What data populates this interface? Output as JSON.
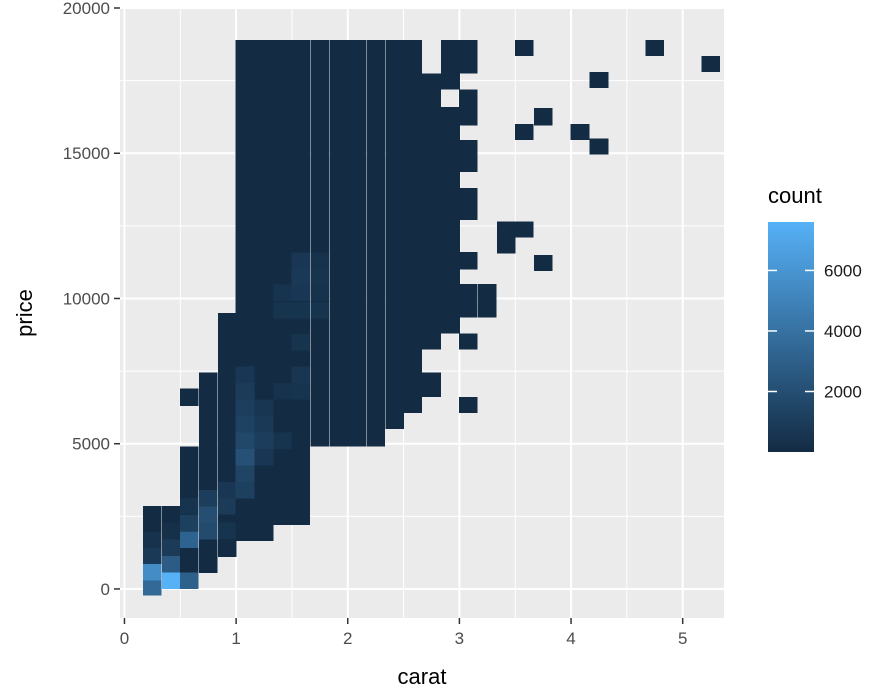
{
  "chart_data": {
    "type": "heatmap",
    "title": "",
    "xlabel": "carat",
    "ylabel": "price",
    "xlim": [
      -0.04,
      5.37
    ],
    "ylim": [
      -1000,
      20000
    ],
    "x_ticks": [
      "0",
      "1",
      "2",
      "3",
      "4",
      "5"
    ],
    "y_ticks": [
      "0",
      "5000",
      "10000",
      "15000",
      "20000"
    ],
    "bin_width": 0.1665,
    "bin_height": 567,
    "legend": {
      "title": "count",
      "min": 1,
      "max": 7600,
      "labels": [
        "2000",
        "4000",
        "6000"
      ],
      "values": [
        2000,
        4000,
        6000
      ],
      "low_color": "#132B43",
      "high_color": "#56B1F7",
      "position": "right"
    },
    "panel_background": "#EBEBEB",
    "grid_color": "#FFFFFF",
    "columns": [
      {
        "x": 0.25,
        "ranges": [
          [
            0,
            2850
          ]
        ],
        "counts": [
          [
            50,
            3500
          ],
          [
            567,
            5500
          ],
          [
            1134,
            800
          ],
          [
            1701,
            400
          ]
        ]
      },
      {
        "x": 0.42,
        "ranges": [
          [
            0,
            2850
          ]
        ],
        "counts": [
          [
            283,
            7600
          ],
          [
            850,
            2800
          ],
          [
            1417,
            900
          ],
          [
            1984,
            300
          ]
        ]
      },
      {
        "x": 0.58,
        "ranges": [
          [
            0,
            4900
          ],
          [
            6300,
            6900
          ]
        ],
        "counts": [
          [
            283,
            3000
          ],
          [
            1700,
            3200
          ],
          [
            2270,
            1200
          ],
          [
            2840,
            500
          ]
        ]
      },
      {
        "x": 0.75,
        "ranges": [
          [
            550,
            7450
          ]
        ],
        "counts": [
          [
            1984,
            1800
          ],
          [
            2551,
            2000
          ],
          [
            3118,
            1000
          ]
        ]
      },
      {
        "x": 0.92,
        "ranges": [
          [
            1100,
            9500
          ]
        ],
        "counts": [
          [
            2000,
            500
          ],
          [
            2840,
            900
          ],
          [
            3400,
            700
          ]
        ]
      },
      {
        "x": 1.08,
        "ranges": [
          [
            1650,
            18900
          ]
        ],
        "counts": [
          [
            3400,
            1200
          ],
          [
            3970,
            1400
          ],
          [
            4530,
            2100
          ],
          [
            5100,
            1600
          ],
          [
            5670,
            1300
          ],
          [
            6240,
            1100
          ],
          [
            6800,
            900
          ],
          [
            7370,
            700
          ]
        ]
      },
      {
        "x": 1.25,
        "ranges": [
          [
            1650,
            18900
          ]
        ],
        "counts": [
          [
            4530,
            700
          ],
          [
            5100,
            1000
          ],
          [
            5670,
            800
          ],
          [
            6240,
            600
          ]
        ]
      },
      {
        "x": 1.42,
        "ranges": [
          [
            2200,
            18900
          ]
        ],
        "counts": [
          [
            5100,
            500
          ],
          [
            6800,
            400
          ],
          [
            9600,
            500
          ],
          [
            10200,
            500
          ]
        ]
      },
      {
        "x": 1.58,
        "ranges": [
          [
            2200,
            18900
          ]
        ],
        "counts": [
          [
            6800,
            500
          ],
          [
            7370,
            600
          ],
          [
            8500,
            500
          ],
          [
            9600,
            500
          ],
          [
            10200,
            700
          ],
          [
            10760,
            800
          ],
          [
            11300,
            700
          ]
        ]
      },
      {
        "x": 1.75,
        "ranges": [
          [
            4900,
            18900
          ]
        ],
        "counts": [
          [
            9600,
            500
          ],
          [
            10200,
            400
          ],
          [
            10760,
            500
          ],
          [
            11300,
            400
          ]
        ]
      },
      {
        "x": 1.92,
        "ranges": [
          [
            4900,
            18900
          ]
        ]
      },
      {
        "x": 2.08,
        "ranges": [
          [
            4900,
            18900
          ]
        ]
      },
      {
        "x": 2.25,
        "ranges": [
          [
            4900,
            18900
          ]
        ]
      },
      {
        "x": 2.42,
        "ranges": [
          [
            5500,
            18900
          ]
        ]
      },
      {
        "x": 2.58,
        "ranges": [
          [
            6050,
            18900
          ]
        ]
      },
      {
        "x": 2.75,
        "ranges": [
          [
            6600,
            7450
          ],
          [
            8250,
            17750
          ]
        ]
      },
      {
        "x": 2.92,
        "ranges": [
          [
            8800,
            16600
          ],
          [
            17200,
            18900
          ]
        ]
      },
      {
        "x": 3.08,
        "ranges": [
          [
            6050,
            6600
          ],
          [
            8250,
            8800
          ],
          [
            9350,
            10500
          ],
          [
            11000,
            11600
          ],
          [
            12700,
            13800
          ],
          [
            14350,
            15450
          ],
          [
            15950,
            17200
          ],
          [
            17750,
            18900
          ]
        ]
      },
      {
        "x": 3.25,
        "ranges": [
          [
            9350,
            10500
          ]
        ]
      },
      {
        "x": 3.42,
        "ranges": [
          [
            11550,
            12650
          ]
        ]
      },
      {
        "x": 3.58,
        "ranges": [
          [
            12100,
            12650
          ],
          [
            15450,
            16000
          ],
          [
            18350,
            18900
          ]
        ]
      },
      {
        "x": 3.75,
        "ranges": [
          [
            10950,
            11500
          ],
          [
            15950,
            16550
          ]
        ]
      },
      {
        "x": 4.08,
        "ranges": [
          [
            15450,
            16000
          ]
        ]
      },
      {
        "x": 4.25,
        "ranges": [
          [
            14950,
            15500
          ],
          [
            17250,
            17800
          ]
        ]
      },
      {
        "x": 4.75,
        "ranges": [
          [
            18350,
            18900
          ]
        ]
      },
      {
        "x": 5.25,
        "ranges": [
          [
            17800,
            18350
          ]
        ]
      }
    ]
  }
}
